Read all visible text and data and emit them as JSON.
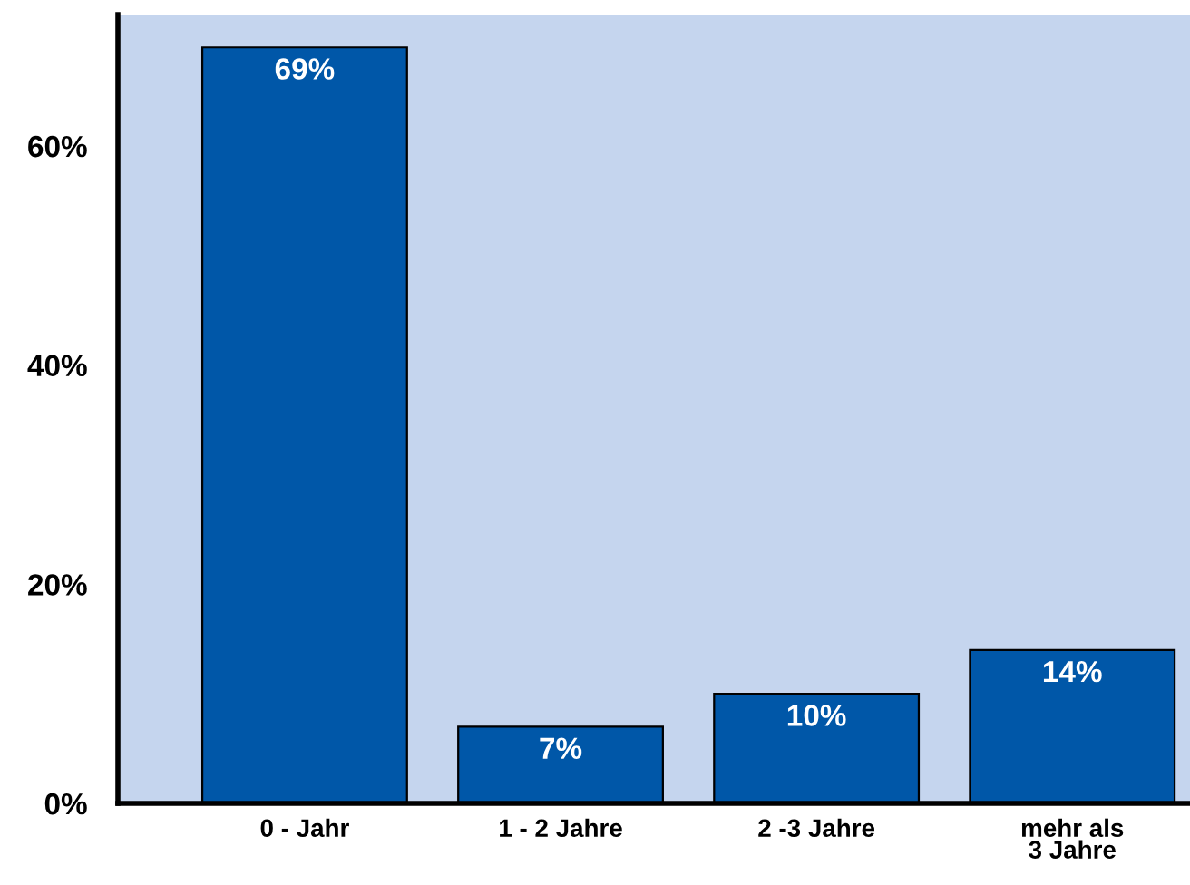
{
  "chart_data": {
    "type": "bar",
    "categories": [
      "0 - Jahr",
      "1 - 2 Jahre",
      "2 -3 Jahre",
      "mehr als\n3 Jahre"
    ],
    "values": [
      69,
      7,
      10,
      14
    ],
    "value_labels": [
      "69%",
      "7%",
      "10%",
      "14%"
    ],
    "color": "#0057a8",
    "ylim": [
      0,
      72
    ],
    "yticks": [
      {
        "value": 0,
        "label": "0%"
      },
      {
        "value": 20,
        "label": "20%"
      },
      {
        "value": 40,
        "label": "40%"
      },
      {
        "value": 60,
        "label": "60%"
      }
    ],
    "grid": false
  }
}
